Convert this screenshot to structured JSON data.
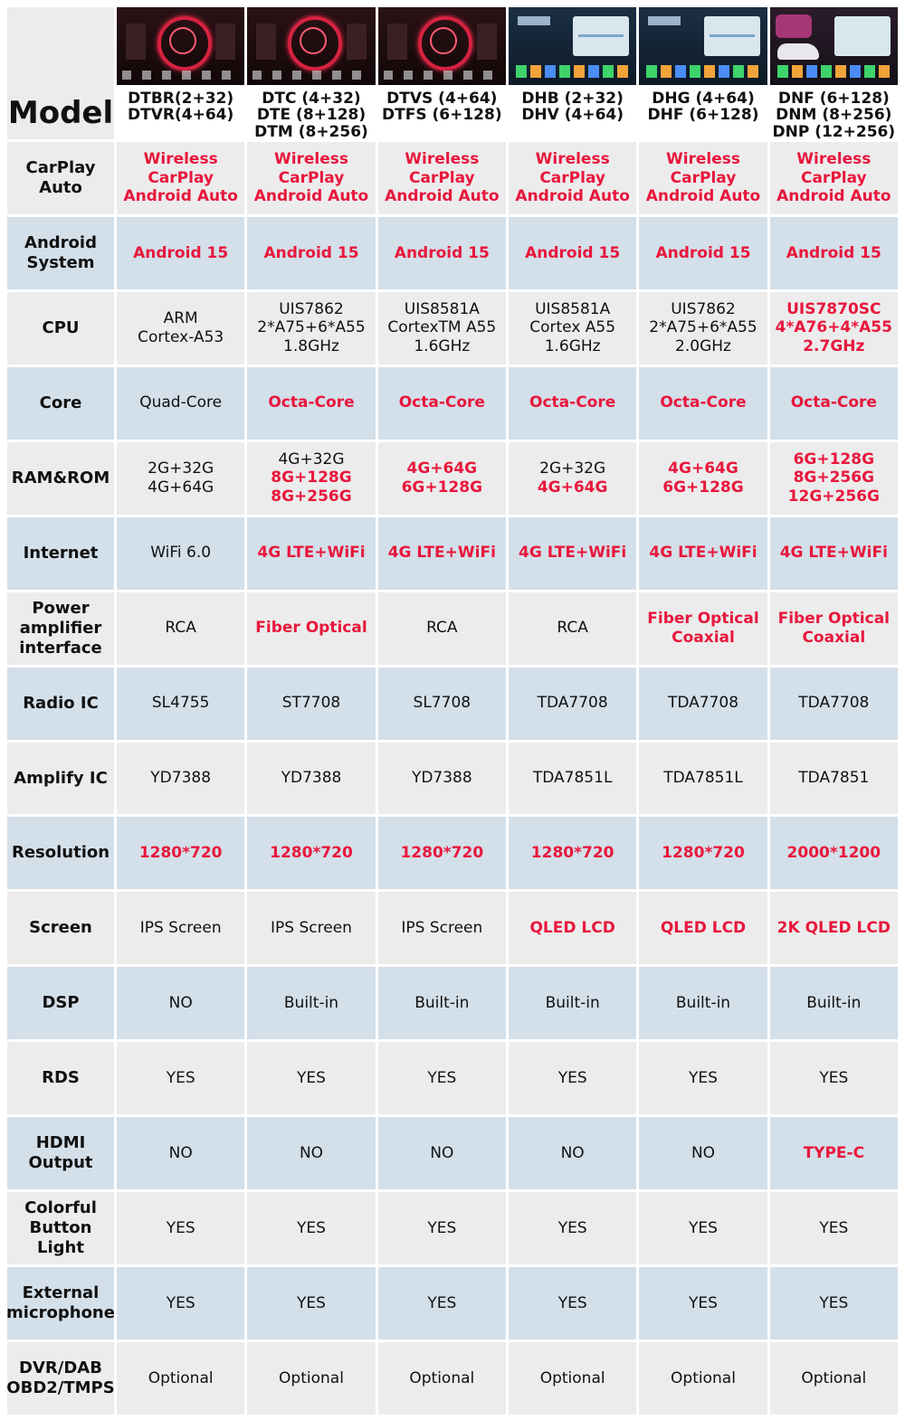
{
  "header": {
    "label": "Model",
    "models": [
      {
        "lines": [
          "DTBR(2+32)",
          "DTVR(4+64)"
        ],
        "thumb": "red-gauge-screen"
      },
      {
        "lines": [
          "DTC (4+32)",
          "DTE (8+128)",
          "DTM (8+256)"
        ],
        "thumb": "red-gauge-screen"
      },
      {
        "lines": [
          "DTVS (4+64)",
          "DTFS (6+128)"
        ],
        "thumb": "red-gauge-screen"
      },
      {
        "lines": [
          "DHB (2+32)",
          "DHV (4+64)"
        ],
        "thumb": "map-launcher-screen"
      },
      {
        "lines": [
          "DHG (4+64)",
          "DHF (6+128)"
        ],
        "thumb": "map-launcher-screen"
      },
      {
        "lines": [
          "DNF (6+128)",
          "DNM (8+256)",
          "DNP (12+256)"
        ],
        "thumb": "car-launcher-screen"
      }
    ]
  },
  "rows": [
    {
      "label": [
        "CarPlay",
        "Auto"
      ],
      "cells": [
        {
          "lines": [
            "Wireless CarPlay",
            "Android Auto"
          ],
          "red": true
        },
        {
          "lines": [
            "Wireless CarPlay",
            "Android Auto"
          ],
          "red": true
        },
        {
          "lines": [
            "Wireless CarPlay",
            "Android Auto"
          ],
          "red": true
        },
        {
          "lines": [
            "Wireless CarPlay",
            "Android Auto"
          ],
          "red": true
        },
        {
          "lines": [
            "Wireless CarPlay",
            "Android Auto"
          ],
          "red": true
        },
        {
          "lines": [
            "Wireless CarPlay",
            "Android Auto"
          ],
          "red": true
        }
      ]
    },
    {
      "label": [
        "Android",
        "System"
      ],
      "cells": [
        {
          "lines": [
            "Android 15"
          ],
          "red": true
        },
        {
          "lines": [
            "Android 15"
          ],
          "red": true
        },
        {
          "lines": [
            "Android 15"
          ],
          "red": true
        },
        {
          "lines": [
            "Android 15"
          ],
          "red": true
        },
        {
          "lines": [
            "Android 15"
          ],
          "red": true
        },
        {
          "lines": [
            "Android 15"
          ],
          "red": true
        }
      ]
    },
    {
      "label": [
        "CPU"
      ],
      "cells": [
        {
          "lines": [
            "ARM",
            "Cortex-A53"
          ],
          "red": false
        },
        {
          "lines": [
            "UIS7862",
            "2*A75+6*A55",
            "1.8GHz"
          ],
          "red": false
        },
        {
          "lines": [
            "UIS8581A",
            "CortexTM A55",
            "1.6GHz"
          ],
          "red": false
        },
        {
          "lines": [
            "UIS8581A",
            "Cortex A55",
            "1.6GHz"
          ],
          "red": false
        },
        {
          "lines": [
            "UIS7862",
            "2*A75+6*A55",
            "2.0GHz"
          ],
          "red": false
        },
        {
          "lines": [
            "UIS7870SC",
            "4*A76+4*A55",
            "2.7GHz"
          ],
          "red": true
        }
      ]
    },
    {
      "label": [
        "Core"
      ],
      "cells": [
        {
          "lines": [
            "Quad-Core"
          ],
          "red": false
        },
        {
          "lines": [
            "Octa-Core"
          ],
          "red": true
        },
        {
          "lines": [
            "Octa-Core"
          ],
          "red": true
        },
        {
          "lines": [
            "Octa-Core"
          ],
          "red": true
        },
        {
          "lines": [
            "Octa-Core"
          ],
          "red": true
        },
        {
          "lines": [
            "Octa-Core"
          ],
          "red": true
        }
      ]
    },
    {
      "label": [
        "RAM&ROM"
      ],
      "cells": [
        {
          "lines": [
            "2G+32G",
            "4G+64G"
          ],
          "red": false
        },
        {
          "lines": [
            "4G+32G"
          ],
          "red": false,
          "extra_red": [
            "8G+128G",
            "8G+256G"
          ]
        },
        {
          "lines": [
            "4G+64G",
            "6G+128G"
          ],
          "red": true
        },
        {
          "lines": [
            "2G+32G"
          ],
          "red": false,
          "extra_red": [
            "4G+64G"
          ]
        },
        {
          "lines": [
            "4G+64G",
            "6G+128G"
          ],
          "red": true
        },
        {
          "lines": [
            "6G+128G",
            "8G+256G",
            "12G+256G"
          ],
          "red": true
        }
      ]
    },
    {
      "label": [
        "Internet"
      ],
      "cells": [
        {
          "lines": [
            "WiFi 6.0"
          ],
          "red": false
        },
        {
          "lines": [
            "4G LTE+WiFi"
          ],
          "red": true
        },
        {
          "lines": [
            "4G LTE+WiFi"
          ],
          "red": true
        },
        {
          "lines": [
            "4G LTE+WiFi"
          ],
          "red": true
        },
        {
          "lines": [
            "4G LTE+WiFi"
          ],
          "red": true
        },
        {
          "lines": [
            "4G LTE+WiFi"
          ],
          "red": true
        }
      ]
    },
    {
      "label": [
        "Power",
        "amplifier",
        "interface"
      ],
      "cells": [
        {
          "lines": [
            "RCA"
          ],
          "red": false
        },
        {
          "lines": [
            "Fiber Optical"
          ],
          "red": true
        },
        {
          "lines": [
            "RCA"
          ],
          "red": false
        },
        {
          "lines": [
            "RCA"
          ],
          "red": false
        },
        {
          "lines": [
            "Fiber Optical",
            "Coaxial"
          ],
          "red": true
        },
        {
          "lines": [
            "Fiber Optical",
            "Coaxial"
          ],
          "red": true
        }
      ]
    },
    {
      "label": [
        "Radio IC"
      ],
      "cells": [
        {
          "lines": [
            "SL4755"
          ],
          "red": false
        },
        {
          "lines": [
            "ST7708"
          ],
          "red": false
        },
        {
          "lines": [
            "SL7708"
          ],
          "red": false
        },
        {
          "lines": [
            "TDA7708"
          ],
          "red": false
        },
        {
          "lines": [
            "TDA7708"
          ],
          "red": false
        },
        {
          "lines": [
            "TDA7708"
          ],
          "red": false
        }
      ]
    },
    {
      "label": [
        "Amplify IC"
      ],
      "cells": [
        {
          "lines": [
            "YD7388"
          ],
          "red": false
        },
        {
          "lines": [
            "YD7388"
          ],
          "red": false
        },
        {
          "lines": [
            "YD7388"
          ],
          "red": false
        },
        {
          "lines": [
            "TDA7851L"
          ],
          "red": false
        },
        {
          "lines": [
            "TDA7851L"
          ],
          "red": false
        },
        {
          "lines": [
            "TDA7851"
          ],
          "red": false
        }
      ]
    },
    {
      "label": [
        "Resolution"
      ],
      "cells": [
        {
          "lines": [
            "1280*720"
          ],
          "red": true
        },
        {
          "lines": [
            "1280*720"
          ],
          "red": true
        },
        {
          "lines": [
            "1280*720"
          ],
          "red": true
        },
        {
          "lines": [
            "1280*720"
          ],
          "red": true
        },
        {
          "lines": [
            "1280*720"
          ],
          "red": true
        },
        {
          "lines": [
            "2000*1200"
          ],
          "red": true
        }
      ]
    },
    {
      "label": [
        "Screen"
      ],
      "cells": [
        {
          "lines": [
            "IPS Screen"
          ],
          "red": false
        },
        {
          "lines": [
            "IPS Screen"
          ],
          "red": false
        },
        {
          "lines": [
            "IPS Screen"
          ],
          "red": false
        },
        {
          "lines": [
            "QLED LCD"
          ],
          "red": true
        },
        {
          "lines": [
            "QLED LCD"
          ],
          "red": true
        },
        {
          "lines": [
            "2K QLED LCD"
          ],
          "red": true
        }
      ]
    },
    {
      "label": [
        "DSP"
      ],
      "cells": [
        {
          "lines": [
            "NO"
          ],
          "red": false
        },
        {
          "lines": [
            "Built-in"
          ],
          "red": false
        },
        {
          "lines": [
            "Built-in"
          ],
          "red": false
        },
        {
          "lines": [
            "Built-in"
          ],
          "red": false
        },
        {
          "lines": [
            "Built-in"
          ],
          "red": false
        },
        {
          "lines": [
            "Built-in"
          ],
          "red": false
        }
      ]
    },
    {
      "label": [
        "RDS"
      ],
      "cells": [
        {
          "lines": [
            "YES"
          ],
          "red": false
        },
        {
          "lines": [
            "YES"
          ],
          "red": false
        },
        {
          "lines": [
            "YES"
          ],
          "red": false
        },
        {
          "lines": [
            "YES"
          ],
          "red": false
        },
        {
          "lines": [
            "YES"
          ],
          "red": false
        },
        {
          "lines": [
            "YES"
          ],
          "red": false
        }
      ]
    },
    {
      "label": [
        "HDMI",
        "Output"
      ],
      "cells": [
        {
          "lines": [
            "NO"
          ],
          "red": false
        },
        {
          "lines": [
            "NO"
          ],
          "red": false
        },
        {
          "lines": [
            "NO"
          ],
          "red": false
        },
        {
          "lines": [
            "NO"
          ],
          "red": false
        },
        {
          "lines": [
            "NO"
          ],
          "red": false
        },
        {
          "lines": [
            "TYPE-C"
          ],
          "red": true
        }
      ]
    },
    {
      "label": [
        "Colorful",
        "Button Light"
      ],
      "cells": [
        {
          "lines": [
            "YES"
          ],
          "red": false
        },
        {
          "lines": [
            "YES"
          ],
          "red": false
        },
        {
          "lines": [
            "YES"
          ],
          "red": false
        },
        {
          "lines": [
            "YES"
          ],
          "red": false
        },
        {
          "lines": [
            "YES"
          ],
          "red": false
        },
        {
          "lines": [
            "YES"
          ],
          "red": false
        }
      ]
    },
    {
      "label": [
        "External",
        "microphone"
      ],
      "cells": [
        {
          "lines": [
            "YES"
          ],
          "red": false
        },
        {
          "lines": [
            "YES"
          ],
          "red": false
        },
        {
          "lines": [
            "YES"
          ],
          "red": false
        },
        {
          "lines": [
            "YES"
          ],
          "red": false
        },
        {
          "lines": [
            "YES"
          ],
          "red": false
        },
        {
          "lines": [
            "YES"
          ],
          "red": false
        }
      ]
    },
    {
      "label": [
        "DVR/DAB",
        "OBD2/TMPS"
      ],
      "cells": [
        {
          "lines": [
            "Optional"
          ],
          "red": false
        },
        {
          "lines": [
            "Optional"
          ],
          "red": false
        },
        {
          "lines": [
            "Optional"
          ],
          "red": false
        },
        {
          "lines": [
            "Optional"
          ],
          "red": false
        },
        {
          "lines": [
            "Optional"
          ],
          "red": false
        },
        {
          "lines": [
            "Optional"
          ],
          "red": false
        }
      ]
    }
  ],
  "colors": {
    "accent_red": "#e8173c",
    "row_gray": "#ececec",
    "row_blue": "#d3dfe9"
  }
}
